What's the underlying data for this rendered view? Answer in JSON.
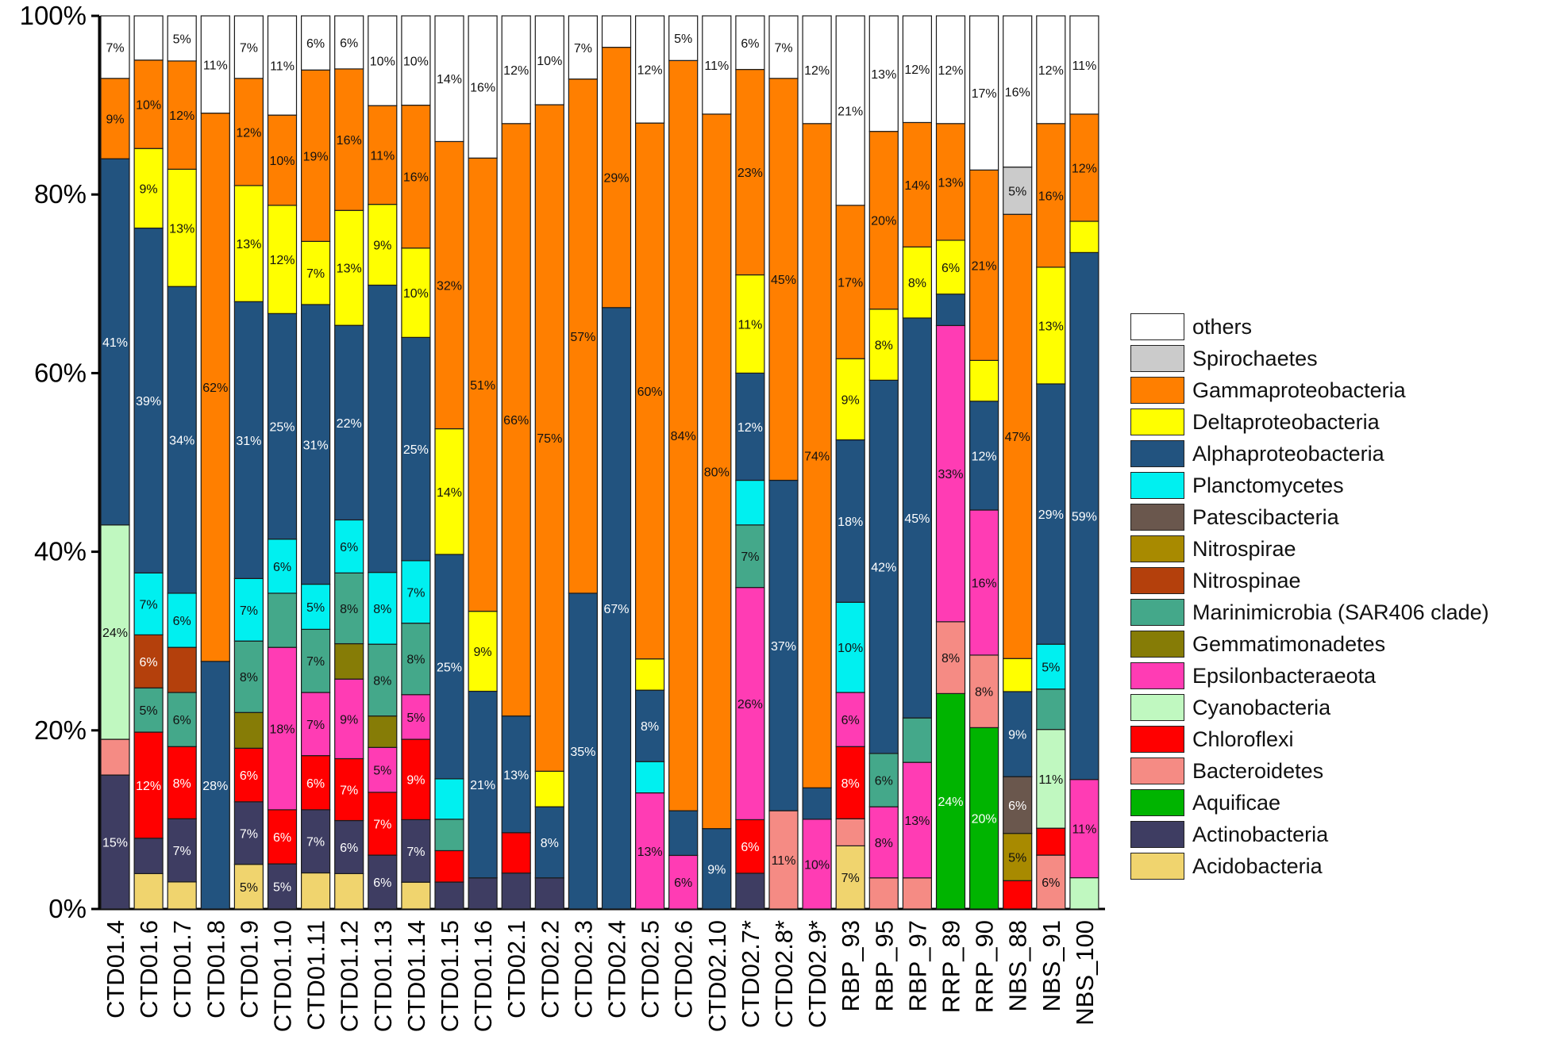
{
  "chart_data": {
    "type": "bar",
    "stacked": true,
    "orientation": "vertical",
    "ylim": [
      0,
      100
    ],
    "y_ticks": [
      "0%",
      "20%",
      "40%",
      "60%",
      "80%",
      "100%"
    ],
    "categories": [
      "CTD01.4",
      "CTD01.6",
      "CTD01.7",
      "CTD01.8",
      "CTD01.9",
      "CTD01.10",
      "CTD01.11",
      "CTD01.12",
      "CTD01.13",
      "CTD01.14",
      "CTD01.15",
      "CTD01.16",
      "CTD02.1",
      "CTD02.2",
      "CTD02.3",
      "CTD02.4",
      "CTD02.5",
      "CTD02.6",
      "CTD02.10",
      "CTD02.7*",
      "CTD02.8*",
      "CTD02.9*",
      "RBP_93",
      "RBP_95",
      "RBP_97",
      "RRP_89",
      "RRP_90",
      "NBS_88",
      "NBS_91",
      "NBS_100"
    ],
    "series": [
      {
        "name": "Acidobacteria",
        "color": "#f0d46e",
        "values": [
          0,
          4,
          3,
          0,
          5,
          0,
          4,
          4,
          0,
          3,
          0,
          0,
          0,
          0,
          0,
          0,
          0,
          0,
          0,
          0,
          0,
          0,
          7,
          0,
          0,
          0,
          0,
          0,
          0,
          0
        ],
        "labels": [
          "",
          "",
          "",
          "",
          "5%",
          "",
          "",
          "",
          "",
          "",
          "",
          "",
          "",
          "",
          "",
          "",
          "",
          "",
          "",
          "",
          "",
          "",
          "7%",
          "",
          "",
          "",
          "",
          "",
          "",
          ""
        ]
      },
      {
        "name": "Actinobacteria",
        "color": "#3e3d62",
        "values": [
          15,
          4,
          7,
          0,
          7,
          5,
          7,
          6,
          6,
          7,
          3,
          3.5,
          4,
          3.5,
          0,
          0,
          0,
          0,
          0,
          4,
          0,
          0,
          0,
          0,
          0,
          0,
          0,
          0,
          0,
          0
        ],
        "labels": [
          "15%",
          "",
          "7%",
          "",
          "7%",
          "5%",
          "7%",
          "6%",
          "6%",
          "7%",
          "",
          "",
          "",
          "",
          "",
          "",
          "",
          "",
          "",
          "",
          "",
          "",
          "",
          "",
          "",
          "",
          "",
          "",
          "",
          ""
        ]
      },
      {
        "name": "Aquificae",
        "color": "#00b400",
        "values": [
          0,
          0,
          0,
          0,
          0,
          0,
          0,
          0,
          0,
          0,
          0,
          0,
          0,
          0,
          0,
          0,
          0,
          0,
          0,
          0,
          0,
          0,
          0,
          0,
          0,
          24,
          20,
          0,
          0,
          0
        ],
        "labels": [
          "",
          "",
          "",
          "",
          "",
          "",
          "",
          "",
          "",
          "",
          "",
          "",
          "",
          "",
          "",
          "",
          "",
          "",
          "",
          "",
          "",
          "",
          "",
          "",
          "",
          "24%",
          "20%",
          "",
          "",
          ""
        ]
      },
      {
        "name": "Bacteroidetes",
        "color": "#f58b84",
        "values": [
          4,
          0,
          0,
          0,
          0,
          0,
          0,
          0,
          0,
          0,
          0,
          0,
          0,
          0,
          0,
          0,
          0,
          0,
          0,
          0,
          11,
          0,
          3,
          3.5,
          3.5,
          8,
          8,
          0,
          6,
          0
        ],
        "labels": [
          "",
          "",
          "",
          "",
          "",
          "",
          "",
          "",
          "",
          "",
          "",
          "",
          "",
          "",
          "",
          "",
          "",
          "",
          "",
          "",
          "11%",
          "",
          "",
          "",
          "",
          "8%",
          "8%",
          "",
          "6%",
          ""
        ]
      },
      {
        "name": "Chloroflexi",
        "color": "#ff0000",
        "values": [
          0,
          12,
          8,
          0,
          6,
          6,
          6,
          7,
          7,
          9,
          3.5,
          0,
          4.5,
          0,
          0,
          0,
          0,
          0,
          0,
          6,
          0,
          0,
          8,
          0,
          0,
          0,
          0,
          3,
          3,
          0
        ],
        "labels": [
          "",
          "12%",
          "8%",
          "",
          "6%",
          "6%",
          "6%",
          "7%",
          "7%",
          "9%",
          "",
          "",
          "",
          "",
          "",
          "",
          "",
          "",
          "",
          "6%",
          "",
          "",
          "8%",
          "",
          "",
          "",
          "",
          "",
          "",
          ""
        ]
      },
      {
        "name": "Cyanobacteria",
        "color": "#c0f8c0",
        "values": [
          24,
          0,
          0,
          0,
          0,
          0,
          0,
          0,
          0,
          0,
          0,
          0,
          0,
          0,
          0,
          0,
          0,
          0,
          0,
          0,
          0,
          0,
          0,
          0,
          0,
          0,
          0,
          0,
          11,
          3.5
        ],
        "labels": [
          "24%",
          "",
          "",
          "",
          "",
          "",
          "",
          "",
          "",
          "",
          "",
          "",
          "",
          "",
          "",
          "",
          "",
          "",
          "",
          "",
          "",
          "",
          "",
          "",
          "",
          "",
          "",
          "",
          "11%",
          ""
        ]
      },
      {
        "name": "Epsilonbacteraeota",
        "color": "#ff3cb4",
        "values": [
          0,
          0,
          0,
          0,
          0,
          18,
          7,
          9,
          5,
          5,
          0,
          0,
          0,
          0,
          0,
          0,
          13,
          6,
          0,
          26,
          0,
          10,
          6,
          8,
          13,
          33,
          16,
          0,
          0,
          11
        ],
        "labels": [
          "",
          "",
          "",
          "",
          "",
          "18%",
          "7%",
          "9%",
          "5%",
          "5%",
          "",
          "",
          "",
          "",
          "",
          "",
          "13%",
          "6%",
          "",
          "26%",
          "",
          "10%",
          "6%",
          "8%",
          "13%",
          "33%",
          "16%",
          "",
          "",
          "11%"
        ]
      },
      {
        "name": "Gemmatimonadetes",
        "color": "#867c06",
        "values": [
          0,
          0,
          0,
          0,
          4,
          0,
          0,
          4,
          3.5,
          0,
          0,
          0,
          0,
          0,
          0,
          0,
          0,
          0,
          0,
          0,
          0,
          0,
          0,
          0,
          0,
          0,
          0,
          0,
          0,
          0
        ],
        "labels": [
          "",
          "",
          "",
          "",
          "",
          "",
          "",
          "",
          "",
          "",
          "",
          "",
          "",
          "",
          "",
          "",
          "",
          "",
          "",
          "",
          "",
          "",
          "",
          "",
          "",
          "",
          "",
          "",
          "",
          ""
        ]
      },
      {
        "name": "Marinimicrobia (SAR406 clade)",
        "color": "#44a88a",
        "values": [
          0,
          5,
          6,
          0,
          8,
          6,
          7,
          8,
          8,
          8,
          3.5,
          0,
          0,
          0,
          0,
          0,
          0,
          0,
          0,
          7,
          0,
          0,
          0,
          6,
          5,
          0,
          0,
          0,
          4.5,
          0
        ],
        "labels": [
          "",
          "5%",
          "6%",
          "",
          "8%",
          "",
          "7%",
          "8%",
          "8%",
          "8%",
          "",
          "",
          "",
          "",
          "",
          "",
          "",
          "",
          "",
          "7%",
          "",
          "",
          "",
          "6%",
          "",
          "",
          "",
          "",
          "",
          ""
        ]
      },
      {
        "name": "Nitrospinae",
        "color": "#b4400c",
        "values": [
          0,
          6,
          5,
          0,
          0,
          0,
          0,
          0,
          0,
          0,
          0,
          0,
          0,
          0,
          0,
          0,
          0,
          0,
          0,
          0,
          0,
          0,
          0,
          0,
          0,
          0,
          0,
          0,
          0,
          0
        ],
        "labels": [
          "",
          "6%",
          "",
          "",
          "",
          "",
          "",
          "",
          "",
          "",
          "",
          "",
          "",
          "",
          "",
          "",
          "",
          "",
          "",
          "",
          "",
          "",
          "",
          "",
          "",
          "",
          "",
          "",
          "",
          ""
        ]
      },
      {
        "name": "Nitrospirae",
        "color": "#a88a00",
        "values": [
          0,
          0,
          0,
          0,
          0,
          0,
          0,
          0,
          0,
          0,
          0,
          0,
          0,
          0,
          0,
          0,
          0,
          0,
          0,
          0,
          0,
          0,
          0,
          0,
          0,
          0,
          0,
          5,
          0,
          0
        ],
        "labels": [
          "",
          "",
          "",
          "",
          "",
          "",
          "",
          "",
          "",
          "",
          "",
          "",
          "",
          "",
          "",
          "",
          "",
          "",
          "",
          "",
          "",
          "",
          "",
          "",
          "",
          "",
          "",
          "5%",
          "",
          ""
        ]
      },
      {
        "name": "Patescibacteria",
        "color": "#6a574d",
        "values": [
          0,
          0,
          0,
          0,
          0,
          0,
          0,
          0,
          0,
          0,
          0,
          0,
          0,
          0,
          0,
          0,
          0,
          0,
          0,
          0,
          0,
          0,
          0,
          0,
          0,
          0,
          0,
          6,
          0,
          0
        ],
        "labels": [
          "",
          "",
          "",
          "",
          "",
          "",
          "",
          "",
          "",
          "",
          "",
          "",
          "",
          "",
          "",
          "",
          "",
          "",
          "",
          "",
          "",
          "",
          "",
          "",
          "",
          "",
          "",
          "6%",
          "",
          ""
        ]
      },
      {
        "name": "Planctomycetes",
        "color": "#00f0f0",
        "values": [
          0,
          7,
          6,
          0,
          7,
          6,
          5,
          6,
          8,
          7,
          4.5,
          0,
          0,
          0,
          0,
          0,
          3.5,
          0,
          0,
          5,
          0,
          0,
          10,
          0,
          0,
          0,
          0,
          0,
          5,
          0
        ],
        "labels": [
          "",
          "7%",
          "6%",
          "",
          "7%",
          "6%",
          "5%",
          "6%",
          "8%",
          "7%",
          "",
          "",
          "",
          "",
          "",
          "",
          "",
          "",
          "",
          "",
          "",
          "",
          "10%",
          "",
          "",
          "",
          "",
          "",
          "5%",
          ""
        ]
      },
      {
        "name": "Alphaproteobacteria",
        "color": "#22537f",
        "values": [
          41,
          39,
          34,
          28,
          31,
          25,
          31,
          22,
          32,
          25,
          25,
          21,
          13,
          8,
          35,
          67,
          8,
          5,
          9,
          12,
          37,
          3.5,
          18,
          42,
          45,
          3.5,
          12,
          9,
          29,
          59
        ],
        "labels": [
          "41%",
          "39%",
          "34%",
          "28%",
          "31%",
          "25%",
          "31%",
          "22%",
          "",
          "25%",
          "25%",
          "21%",
          "13%",
          "8%",
          "35%",
          "67%",
          "8%",
          "",
          "9%",
          "12%",
          "37%",
          "",
          "18%",
          "42%",
          "45%",
          "",
          "12%",
          "9%",
          "29%",
          "59%"
        ]
      },
      {
        "name": "Deltaproteobacteria",
        "color": "#ffff00",
        "values": [
          0,
          9,
          13,
          0,
          13,
          12,
          7,
          13,
          9,
          10,
          14,
          9,
          0,
          4,
          0,
          0,
          3.5,
          0,
          0,
          11,
          0,
          0,
          9,
          8,
          8,
          6,
          4.5,
          3.5,
          13,
          3.5
        ],
        "labels": [
          "",
          "9%",
          "13%",
          "",
          "13%",
          "12%",
          "7%",
          "13%",
          "9%",
          "10%",
          "14%",
          "9%",
          "",
          "",
          "",
          "",
          "",
          "",
          "",
          "11%",
          "",
          "",
          "9%",
          "8%",
          "8%",
          "6%",
          "",
          "",
          "13%",
          ""
        ]
      },
      {
        "name": "Gammaproteobacteria",
        "color": "#ff7f00",
        "values": [
          9,
          10,
          12,
          62,
          12,
          10,
          19,
          16,
          11,
          16,
          32,
          51,
          66,
          75,
          57,
          29,
          60,
          84,
          80,
          23,
          45,
          74,
          17,
          20,
          14,
          13,
          21,
          47,
          16,
          12
        ],
        "labels": [
          "9%",
          "10%",
          "12%",
          "62%",
          "12%",
          "10%",
          "19%",
          "16%",
          "11%",
          "16%",
          "32%",
          "51%",
          "66%",
          "75%",
          "57%",
          "29%",
          "60%",
          "84%",
          "80%",
          "23%",
          "45%",
          "74%",
          "17%",
          "20%",
          "14%",
          "13%",
          "21%",
          "47%",
          "16%",
          "12%"
        ]
      },
      {
        "name": "Spirochaetes",
        "color": "#cbcbcb",
        "values": [
          0,
          0,
          0,
          0,
          0,
          0,
          0,
          0,
          0,
          0,
          0,
          0,
          0,
          0,
          0,
          0,
          0,
          0,
          0,
          0,
          0,
          0,
          0,
          0,
          0,
          0,
          0,
          5,
          0,
          0
        ],
        "labels": [
          "",
          "",
          "",
          "",
          "",
          "",
          "",
          "",
          "",
          "",
          "",
          "",
          "",
          "",
          "",
          "",
          "",
          "",
          "",
          "",
          "",
          "",
          "",
          "",
          "",
          "",
          "",
          "5%",
          "",
          ""
        ]
      },
      {
        "name": "others",
        "color": "#ffffff",
        "values": [
          7,
          5,
          5,
          11,
          7,
          11,
          6,
          6,
          10,
          10,
          14,
          16,
          12,
          10,
          7,
          3.5,
          12,
          5,
          11,
          6,
          7,
          12,
          21,
          13,
          12,
          12,
          17,
          16,
          12,
          11
        ],
        "labels": [
          "7%",
          "",
          "5%",
          "11%",
          "7%",
          "11%",
          "6%",
          "6%",
          "10%",
          "10%",
          "14%",
          "16%",
          "12%",
          "10%",
          "7%",
          "",
          "12%",
          "5%",
          "11%",
          "6%",
          "7%",
          "12%",
          "21%",
          "13%",
          "12%",
          "12%",
          "17%",
          "16%",
          "12%",
          "11%"
        ]
      }
    ],
    "legend": {
      "placement": "right",
      "entries": [
        "others",
        "Spirochaetes",
        "Gammaproteobacteria",
        "Deltaproteobacteria",
        "Alphaproteobacteria",
        "Planctomycetes",
        "Patescibacteria",
        "Nitrospirae",
        "Nitrospinae",
        "Marinimicrobia (SAR406 clade)",
        "Gemmatimonadetes",
        "Epsilonbacteraeota",
        "Cyanobacteria",
        "Chloroflexi",
        "Bacteroidetes",
        "Aquificae",
        "Actinobacteria",
        "Acidobacteria"
      ]
    }
  }
}
